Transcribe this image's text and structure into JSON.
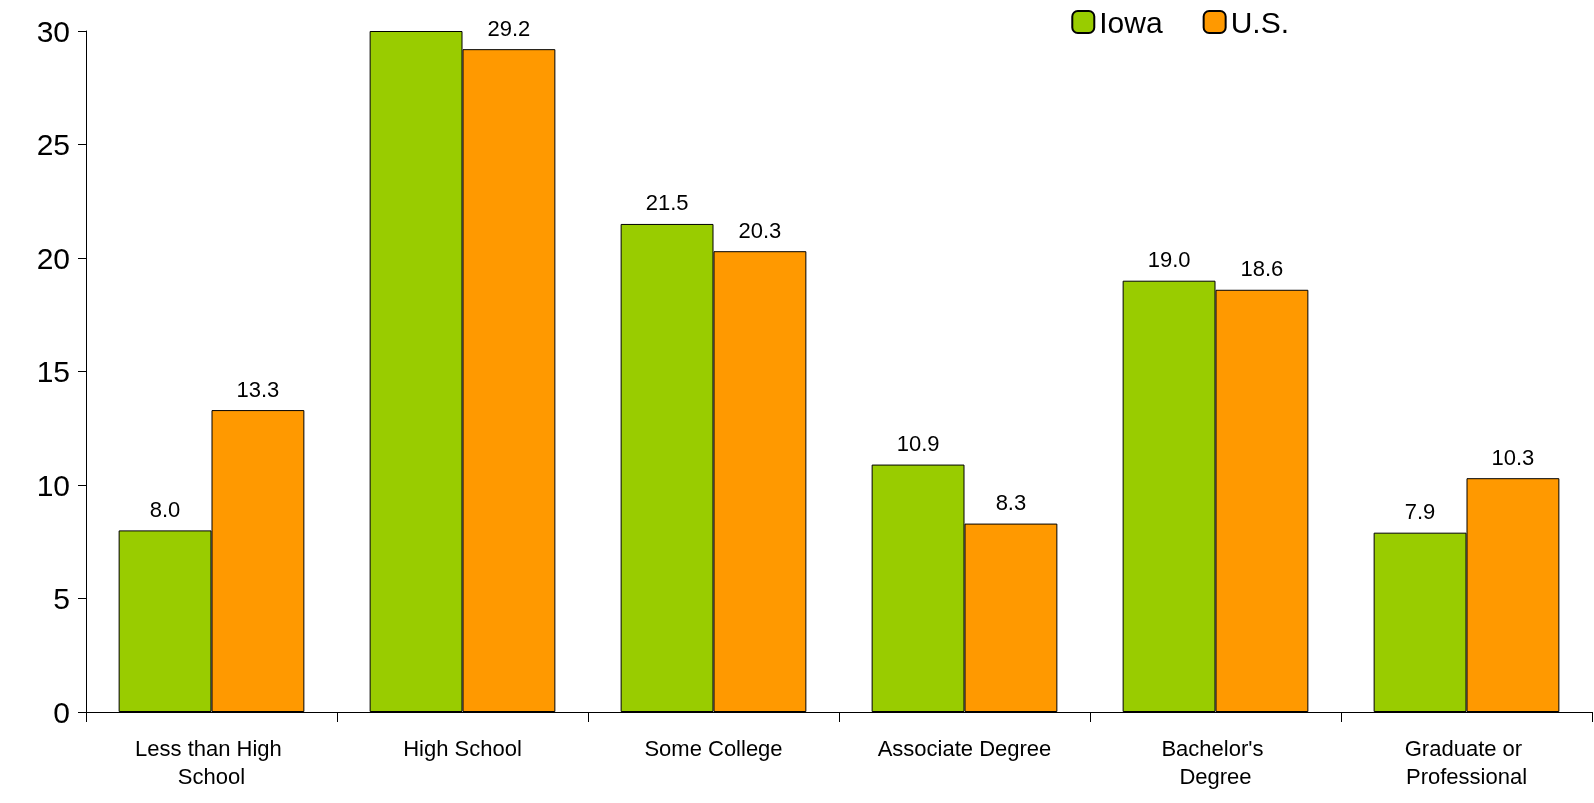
{
  "chart_data": {
    "type": "bar",
    "categories": [
      "Less than High School",
      "High School",
      "Some College",
      "Associate Degree",
      "Bachelor's Degree",
      "Graduate or Professional"
    ],
    "series": [
      {
        "name": "Iowa",
        "color": "#99cc00",
        "values": [
          8.0,
          30,
          21.5,
          10.9,
          19.0,
          7.9
        ],
        "value_labels": [
          "8.0",
          null,
          "21.5",
          "10.9",
          "19.0",
          "7.9"
        ]
      },
      {
        "name": "U.S.",
        "color": "#ff9900",
        "values": [
          13.3,
          29.2,
          20.3,
          8.3,
          18.6,
          10.3
        ],
        "value_labels": [
          "13.3",
          "29.2",
          "20.3",
          "8.3",
          "18.6",
          "10.3"
        ]
      }
    ],
    "ylim": [
      0,
      30
    ],
    "yticks": [
      0,
      5,
      10,
      15,
      20,
      25,
      30
    ],
    "grid": false,
    "legend": "top right"
  }
}
